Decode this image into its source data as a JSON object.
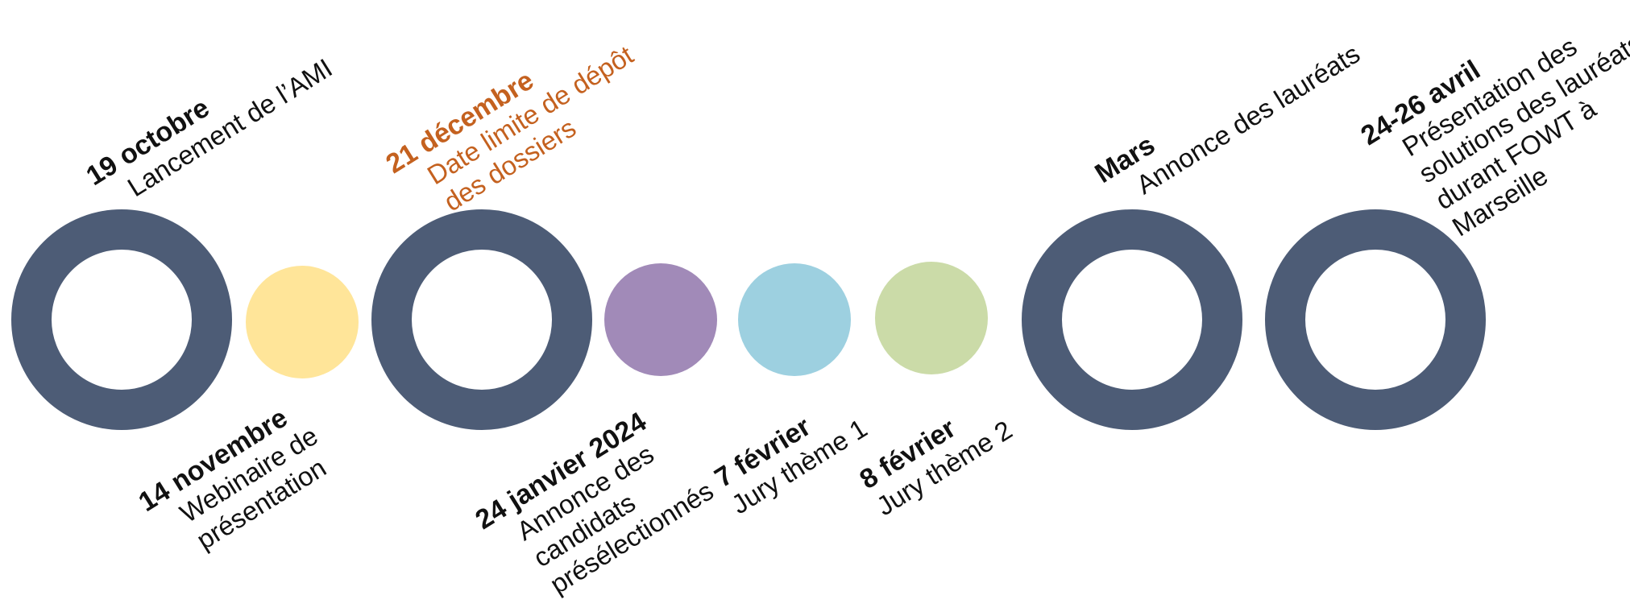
{
  "colors": {
    "ring": "#4d5c76",
    "text": "#111111",
    "accent": "#c4611f",
    "yellow": "#ffe599",
    "purple": "#a18ab8",
    "blue": "#9dd0e0",
    "green": "#cbdba8"
  },
  "milestones": [
    {
      "date": "19 octobre",
      "desc": [
        "Lancement de l’AMI"
      ]
    },
    {
      "date": "14 novembre",
      "desc": [
        "Webinaire de",
        "présentation"
      ]
    },
    {
      "date": "21 décembre",
      "desc": [
        "Date limite de dépôt",
        "des dossiers"
      ],
      "highlight": true
    },
    {
      "date": "24 janvier 2024",
      "desc": [
        "Annonce des",
        "candidats",
        "présélectionnés"
      ]
    },
    {
      "date": "7 février",
      "desc": [
        "Jury thème 1"
      ]
    },
    {
      "date": "8 février",
      "desc": [
        "Jury thème 2"
      ]
    },
    {
      "date": "Mars",
      "desc": [
        "Annonce des lauréats"
      ]
    },
    {
      "date": "24-26 avril",
      "desc": [
        "Présentation des",
        "solutions des lauréats",
        "durant FOWT à",
        "Marseille"
      ]
    }
  ]
}
